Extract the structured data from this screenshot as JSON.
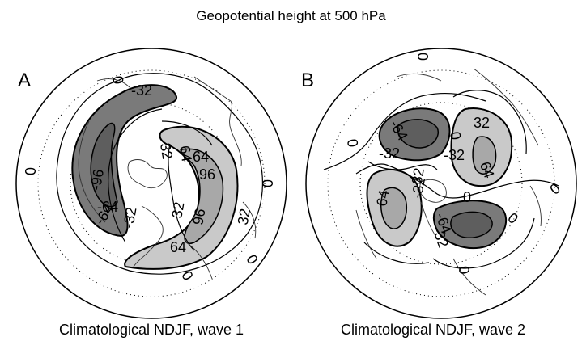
{
  "title": "Geopotential height at 500 hPa",
  "panels": [
    {
      "letter": "A",
      "caption": "Climatological NDJF, wave 1",
      "contour_labels": [
        "0",
        "-32",
        "-64",
        "-96",
        "-64",
        "-32",
        "32",
        "64",
        "96",
        "32",
        "64",
        "96",
        "32",
        "64",
        "0",
        "0",
        "0",
        "0"
      ]
    },
    {
      "letter": "B",
      "caption": "Climatological NDJF, wave 2",
      "contour_labels": [
        "0",
        "-64",
        "-32",
        "-32",
        "0",
        "32",
        "64",
        "-32",
        "64",
        "32",
        "0",
        "-64",
        "-32",
        "0",
        "0",
        "0",
        "0"
      ]
    }
  ],
  "colors": {
    "negative_fill": "#7a7a7a",
    "positive_fill": "#c9c9c9",
    "positive_fill_strong": "#a8a8a8",
    "coastline": "#333333"
  }
}
